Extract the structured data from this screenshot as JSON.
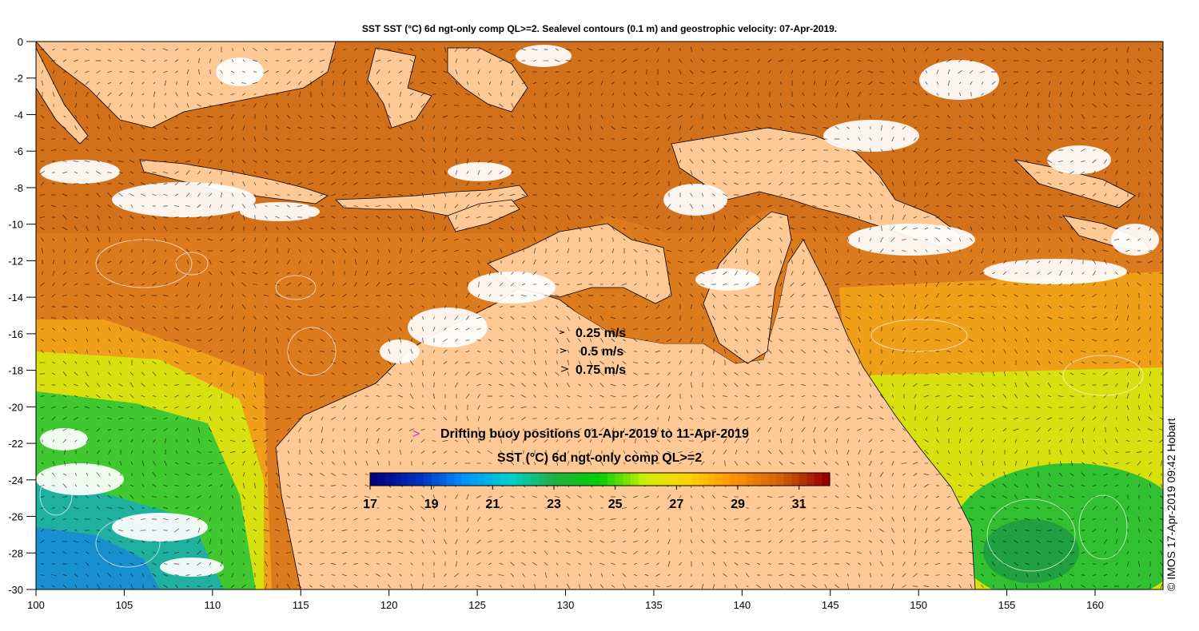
{
  "title": "SST SST (°C) 6d ngt-only comp QL>=2. Sealevel contours (0.1 m) and geostrophic velocity: 07-Apr-2019.",
  "axes": {
    "x_ticks": [
      "100",
      "105",
      "110",
      "115",
      "120",
      "125",
      "130",
      "135",
      "140",
      "145",
      "150",
      "155",
      "160"
    ],
    "y_ticks": [
      "0",
      "-2",
      "-4",
      "-6",
      "-8",
      "-10",
      "-12",
      "-14",
      "-16",
      "-18",
      "-20",
      "-22",
      "-24",
      "-26",
      "-28",
      "-30"
    ]
  },
  "velocity_legend": [
    {
      "label": "0.25 m/s",
      "value": 0.25
    },
    {
      "label": "0.5 m/s",
      "value": 0.5
    },
    {
      "label": "0.75 m/s",
      "value": 0.75
    }
  ],
  "buoy_legend": {
    "symbol": ">",
    "label": "Drifting buoy positions 01-Apr-2019 to 11-Apr-2019",
    "color": "#cc33cc"
  },
  "colorbar": {
    "title": "SST (°C) 6d ngt-only comp QL>=2",
    "ticks": [
      "17",
      "19",
      "21",
      "23",
      "25",
      "27",
      "29",
      "31"
    ],
    "range": [
      17,
      32
    ],
    "colors": [
      "#00007f",
      "#0030c0",
      "#0090ff",
      "#00d0d0",
      "#20b040",
      "#00d000",
      "#d0f000",
      "#ffd000",
      "#ff9000",
      "#d06000",
      "#9b0000"
    ]
  },
  "credit": "© IMOS 17-Apr-2019 09:42 Hobart",
  "colors": {
    "land": "#fec994",
    "sst_warm": "#dc7a1e",
    "sst_hot": "#cc5a14",
    "sst_mid": "#f0a018",
    "sst_yellow": "#d8e010",
    "sst_green": "#30c030",
    "sst_cyan": "#20b0c0",
    "cloud": "#ffffff"
  }
}
